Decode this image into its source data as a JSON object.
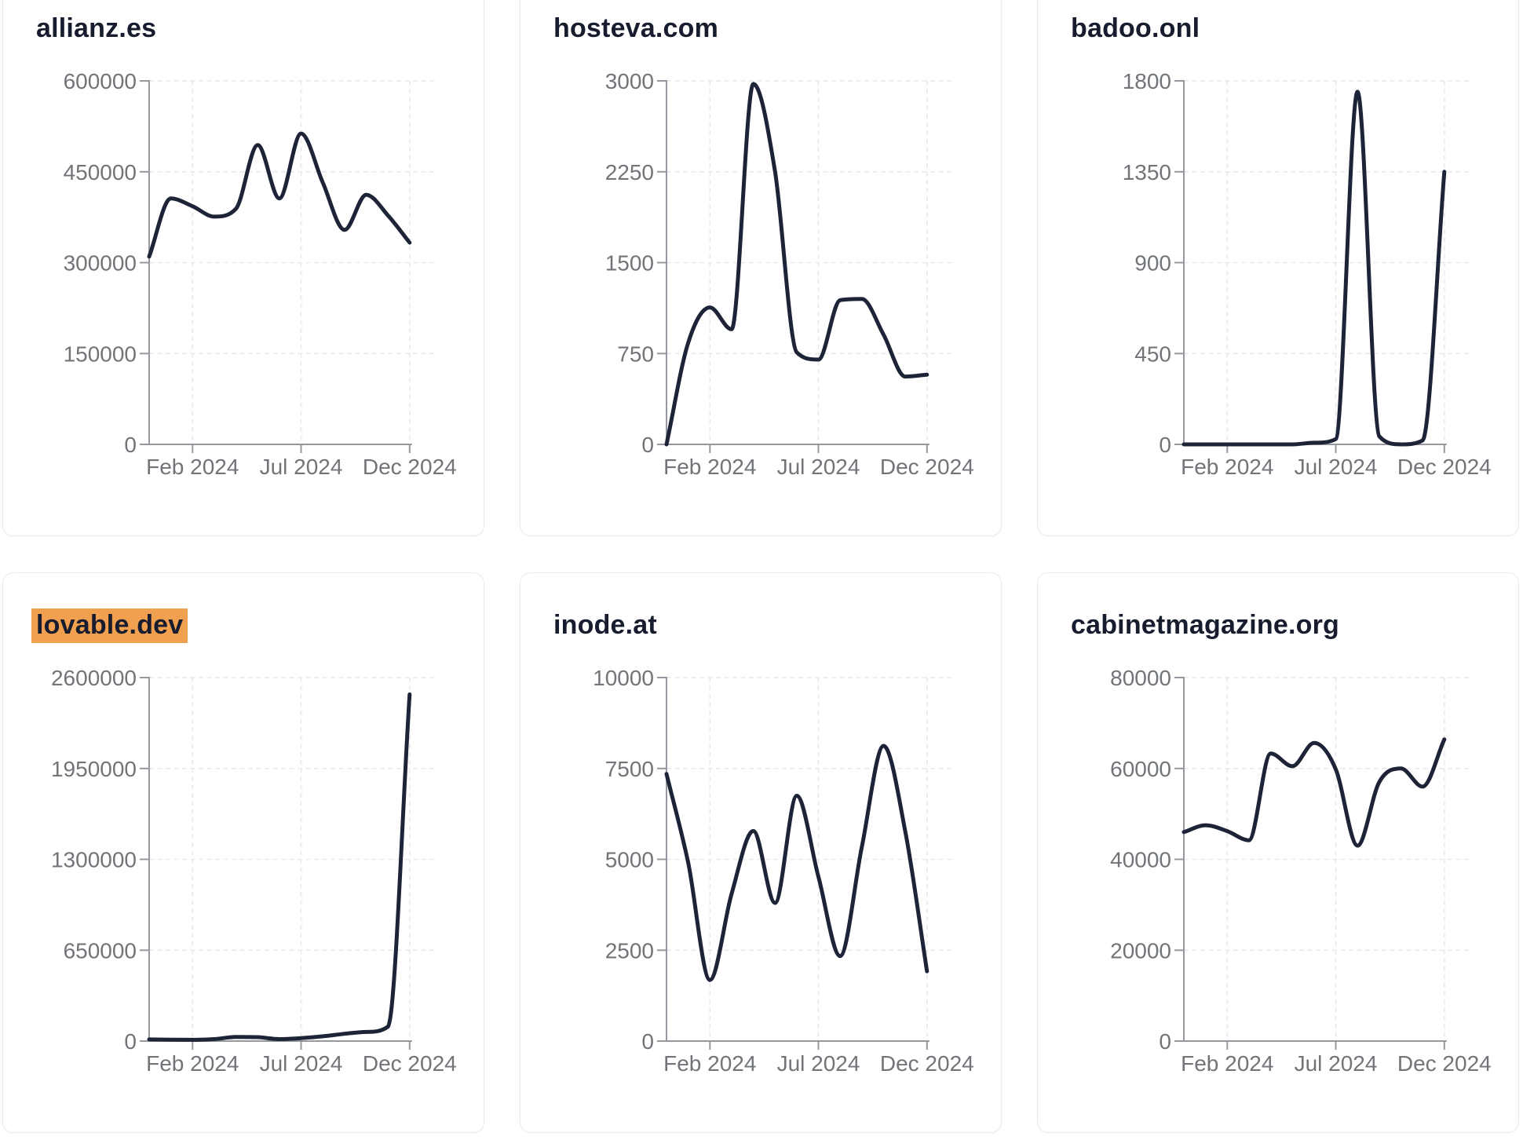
{
  "page": {
    "background": "#ffffff"
  },
  "colors": {
    "line": "#1e2438",
    "title": "#171c2e",
    "tick_label": "#717479",
    "axis": "#95989e",
    "grid": "#e8e9ec",
    "card_border": "#e8ebf1",
    "title_highlight": "#f0a04f"
  },
  "x_axis_tick_labels": [
    "Feb 2024",
    "Jul 2024",
    "Dec 2024"
  ],
  "chart_data": [
    {
      "type": "line",
      "title": "allianz.es",
      "highlighted": false,
      "x": [
        "Dec 2023",
        "Jan 2024",
        "Feb 2024",
        "Mar 2024",
        "Apr 2024",
        "May 2024",
        "Jun 2024",
        "Jul 2024",
        "Aug 2024",
        "Sep 2024",
        "Oct 2024",
        "Nov 2024",
        "Dec 2024"
      ],
      "values": [
        310000,
        406000,
        393000,
        376000,
        389000,
        494000,
        406000,
        513000,
        432000,
        354000,
        412000,
        378000,
        333000
      ],
      "ylim": [
        0,
        600000
      ],
      "y_ticks": [
        0,
        150000,
        300000,
        450000,
        600000
      ],
      "x_ticks": [
        {
          "label": "Feb 2024",
          "month_index": 2
        },
        {
          "label": "Jul 2024",
          "month_index": 7
        },
        {
          "label": "Dec 2024",
          "month_index": 12
        }
      ],
      "grid": true,
      "legend": "none"
    },
    {
      "type": "line",
      "title": "hosteva.com",
      "highlighted": false,
      "x": [
        "Dec 2023",
        "Jan 2024",
        "Feb 2024",
        "Mar 2024",
        "Apr 2024",
        "May 2024",
        "Jun 2024",
        "Jul 2024",
        "Aug 2024",
        "Sep 2024",
        "Oct 2024",
        "Nov 2024",
        "Dec 2024"
      ],
      "values": [
        0,
        840,
        1130,
        950,
        2975,
        2250,
        760,
        700,
        1190,
        1200,
        905,
        560,
        575
      ],
      "ylim": [
        0,
        3000
      ],
      "y_ticks": [
        0,
        750,
        1500,
        2250,
        3000
      ],
      "x_ticks": [
        {
          "label": "Feb 2024",
          "month_index": 2
        },
        {
          "label": "Jul 2024",
          "month_index": 7
        },
        {
          "label": "Dec 2024",
          "month_index": 12
        }
      ],
      "grid": true,
      "legend": "none"
    },
    {
      "type": "line",
      "title": "badoo.onl",
      "highlighted": false,
      "x": [
        "Dec 2023",
        "Jan 2024",
        "Feb 2024",
        "Mar 2024",
        "Apr 2024",
        "May 2024",
        "Jun 2024",
        "Jul 2024",
        "Aug 2024",
        "Sep 2024",
        "Oct 2024",
        "Nov 2024",
        "Dec 2024"
      ],
      "values": [
        0,
        0,
        0,
        0,
        0,
        0,
        8,
        26,
        1746,
        40,
        0,
        20,
        1350
      ],
      "ylim": [
        0,
        1800
      ],
      "y_ticks": [
        0,
        450,
        900,
        1350,
        1800
      ],
      "x_ticks": [
        {
          "label": "Feb 2024",
          "month_index": 2
        },
        {
          "label": "Jul 2024",
          "month_index": 7
        },
        {
          "label": "Dec 2024",
          "month_index": 12
        }
      ],
      "grid": true,
      "legend": "none"
    },
    {
      "type": "line",
      "title": "lovable.dev",
      "highlighted": true,
      "x": [
        "Dec 2023",
        "Jan 2024",
        "Feb 2024",
        "Mar 2024",
        "Apr 2024",
        "May 2024",
        "Jun 2024",
        "Jul 2024",
        "Aug 2024",
        "Sep 2024",
        "Oct 2024",
        "Nov 2024",
        "Dec 2024"
      ],
      "values": [
        12000,
        10000,
        9000,
        14000,
        30000,
        28000,
        14000,
        21000,
        34000,
        52000,
        65000,
        103000,
        2480000
      ],
      "ylim": [
        0,
        2600000
      ],
      "y_ticks": [
        0,
        650000,
        1300000,
        1950000,
        2600000
      ],
      "x_ticks": [
        {
          "label": "Feb 2024",
          "month_index": 2
        },
        {
          "label": "Jul 2024",
          "month_index": 7
        },
        {
          "label": "Dec 2024",
          "month_index": 12
        }
      ],
      "grid": true,
      "legend": "none"
    },
    {
      "type": "line",
      "title": "inode.at",
      "highlighted": false,
      "x": [
        "Dec 2023",
        "Jan 2024",
        "Feb 2024",
        "Mar 2024",
        "Apr 2024",
        "May 2024",
        "Jun 2024",
        "Jul 2024",
        "Aug 2024",
        "Sep 2024",
        "Oct 2024",
        "Nov 2024",
        "Dec 2024"
      ],
      "values": [
        7350,
        4900,
        1680,
        4050,
        5780,
        3800,
        6750,
        4520,
        2340,
        5350,
        8120,
        5770,
        1920
      ],
      "ylim": [
        0,
        10000
      ],
      "y_ticks": [
        0,
        2500,
        5000,
        7500,
        10000
      ],
      "x_ticks": [
        {
          "label": "Feb 2024",
          "month_index": 2
        },
        {
          "label": "Jul 2024",
          "month_index": 7
        },
        {
          "label": "Dec 2024",
          "month_index": 12
        }
      ],
      "grid": true,
      "legend": "none"
    },
    {
      "type": "line",
      "title": "cabinetmagazine.org",
      "highlighted": false,
      "x": [
        "Dec 2023",
        "Jan 2024",
        "Feb 2024",
        "Mar 2024",
        "Apr 2024",
        "May 2024",
        "Jun 2024",
        "Jul 2024",
        "Aug 2024",
        "Sep 2024",
        "Oct 2024",
        "Nov 2024",
        "Dec 2024"
      ],
      "values": [
        46000,
        47500,
        46200,
        44200,
        63300,
        60500,
        65600,
        59800,
        43000,
        57000,
        60000,
        56000,
        66400
      ],
      "ylim": [
        0,
        80000
      ],
      "y_ticks": [
        0,
        20000,
        40000,
        60000,
        80000
      ],
      "x_ticks": [
        {
          "label": "Feb 2024",
          "month_index": 2
        },
        {
          "label": "Jul 2024",
          "month_index": 7
        },
        {
          "label": "Dec 2024",
          "month_index": 12
        }
      ],
      "grid": true,
      "legend": "none"
    }
  ]
}
